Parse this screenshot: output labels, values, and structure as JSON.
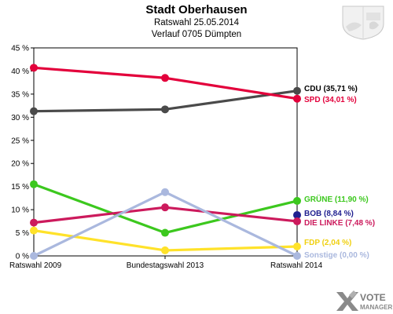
{
  "header": {
    "title": "Stadt Oberhausen",
    "subtitle1": "Ratswahl 25.05.2014",
    "subtitle2": "Verlauf 0705 Dümpten"
  },
  "brand": {
    "logo_text_line1": "VOTE",
    "logo_text_line2": "MANAGER"
  },
  "chart_data": {
    "type": "line",
    "title": "Stadt Oberhausen",
    "categories": [
      "Ratswahl 2009",
      "Bundestagswahl 2013",
      "Ratswahl 2014"
    ],
    "ylim": [
      0,
      45
    ],
    "yticks": [
      "0 %",
      "5 %",
      "10 %",
      "15 %",
      "20 %",
      "25 %",
      "30 %",
      "35 %",
      "40 %",
      "45 %"
    ],
    "grid": false,
    "legend": "right-end-labels",
    "series": [
      {
        "name": "CDU",
        "label": "CDU (35,71 %)",
        "values": [
          31.3,
          31.7,
          35.71
        ],
        "color": "#4a4a4a",
        "label_color": "#000000"
      },
      {
        "name": "SPD",
        "label": "SPD (34,01 %)",
        "values": [
          40.7,
          38.5,
          34.01
        ],
        "color": "#e3003b",
        "label_color": "#e3003b"
      },
      {
        "name": "GRÜNE",
        "label": "GRÜNE (11,90 %)",
        "values": [
          15.5,
          5.0,
          11.9
        ],
        "color": "#3cc81e",
        "label_color": "#3cc81e"
      },
      {
        "name": "BOB",
        "label": "BOB (8,84 %)",
        "values": [
          null,
          null,
          8.84
        ],
        "color": "#1f1f8f",
        "label_color": "#1f1f8f"
      },
      {
        "name": "DIE LINKE",
        "label": "DIE LINKE (7,48 %)",
        "values": [
          7.2,
          10.5,
          7.48
        ],
        "color": "#cc1a5c",
        "label_color": "#cc1a5c"
      },
      {
        "name": "FDP",
        "label": "FDP (2,04 %)",
        "values": [
          5.5,
          1.2,
          2.04
        ],
        "color": "#ffe22a",
        "label_color": "#f0d010"
      },
      {
        "name": "Sonstige",
        "label": "Sonstige (0,00 %)",
        "values": [
          0.0,
          13.8,
          0.0
        ],
        "color": "#aab8de",
        "label_color": "#aab8de"
      }
    ]
  }
}
